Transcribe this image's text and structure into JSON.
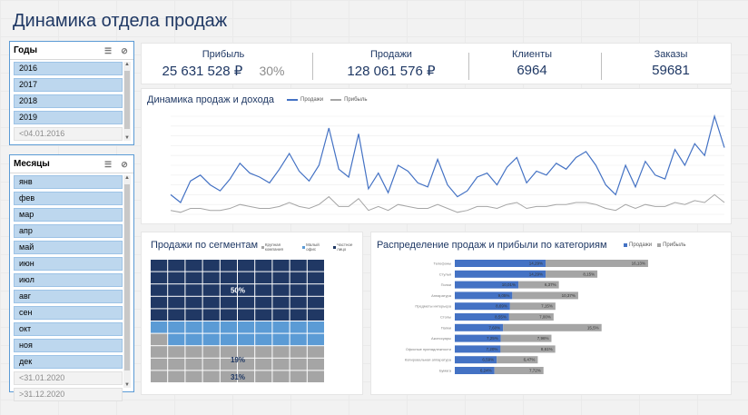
{
  "title": "Динамика отдела продаж",
  "slicer_years": {
    "title": "Годы",
    "items": [
      {
        "label": "2016",
        "active": true
      },
      {
        "label": "2017",
        "active": true
      },
      {
        "label": "2018",
        "active": true
      },
      {
        "label": "2019",
        "active": true
      },
      {
        "label": "<04.01.2016",
        "active": false
      }
    ]
  },
  "slicer_months": {
    "title": "Месяцы",
    "items": [
      {
        "label": "янв",
        "active": true
      },
      {
        "label": "фев",
        "active": true
      },
      {
        "label": "мар",
        "active": true
      },
      {
        "label": "апр",
        "active": true
      },
      {
        "label": "май",
        "active": true
      },
      {
        "label": "июн",
        "active": true
      },
      {
        "label": "июл",
        "active": true
      },
      {
        "label": "авг",
        "active": true
      },
      {
        "label": "сен",
        "active": true
      },
      {
        "label": "окт",
        "active": true
      },
      {
        "label": "ноя",
        "active": true
      },
      {
        "label": "дек",
        "active": true
      },
      {
        "label": "<31.01.2020",
        "active": false
      },
      {
        "label": ">31.12.2020",
        "active": false
      }
    ]
  },
  "kpis": {
    "profit": {
      "label": "Прибыль",
      "value": "25 631 528 ₽",
      "pct": "30%"
    },
    "sales": {
      "label": "Продажи",
      "value": "128 061 576 ₽"
    },
    "clients": {
      "label": "Клиенты",
      "value": "6964"
    },
    "orders": {
      "label": "Заказы",
      "value": "59681"
    }
  },
  "colors": {
    "blue": "#4472c4",
    "gray": "#a5a5a5",
    "navy": "#1f3864",
    "light_blue": "#5b9bd5",
    "dark_blue": "#203864"
  },
  "chart_line": {
    "title": "Динамика продаж и дохода",
    "legend": [
      "Продажи",
      "Прибыль"
    ]
  },
  "chart_waffle": {
    "title": "Продажи по сегментам",
    "legend": [
      "Крупная компания",
      "Малый офис",
      "Частное лицо"
    ],
    "labels": [
      "50%",
      "19%",
      "31%"
    ]
  },
  "chart_bars": {
    "title": "Распределение продаж и прибыли по категориям",
    "legend": [
      "Продажи",
      "Прибыль"
    ]
  },
  "chart_data": [
    {
      "type": "line",
      "title": "Динамика продаж и дохода",
      "series": [
        {
          "name": "Продажи",
          "values": [
            1.0,
            0.6,
            1.7,
            2.0,
            1.5,
            1.2,
            1.8,
            2.6,
            2.1,
            1.9,
            1.6,
            2.3,
            3.1,
            2.2,
            1.7,
            2.5,
            4.4,
            2.3,
            1.9,
            4.1,
            1.3,
            2.1,
            1.1,
            2.5,
            2.2,
            1.6,
            1.4,
            2.8,
            1.5,
            0.9,
            1.2,
            1.9,
            2.1,
            1.5,
            2.4,
            2.9,
            1.6,
            2.2,
            2.0,
            2.6,
            2.3,
            2.9,
            3.2,
            2.5,
            1.5,
            1.0,
            2.5,
            1.4,
            2.7,
            2.0,
            1.8,
            3.3,
            2.5,
            3.6,
            3.0,
            5.0,
            3.4
          ]
        },
        {
          "name": "Прибыль",
          "values": [
            0.2,
            0.1,
            0.3,
            0.3,
            0.2,
            0.2,
            0.3,
            0.5,
            0.4,
            0.3,
            0.3,
            0.4,
            0.6,
            0.4,
            0.3,
            0.5,
            0.9,
            0.4,
            0.4,
            0.8,
            0.2,
            0.4,
            0.2,
            0.5,
            0.4,
            0.3,
            0.3,
            0.5,
            0.3,
            0.1,
            0.2,
            0.4,
            0.4,
            0.3,
            0.5,
            0.6,
            0.3,
            0.4,
            0.4,
            0.5,
            0.5,
            0.6,
            0.6,
            0.5,
            0.3,
            0.2,
            0.5,
            0.3,
            0.5,
            0.4,
            0.4,
            0.6,
            0.5,
            0.7,
            0.6,
            1.0,
            0.6
          ]
        }
      ],
      "grid": true,
      "legend_position": "top"
    },
    {
      "type": "waffle",
      "title": "Продажи по сегментам",
      "categories": [
        "Крупная компания",
        "Малый офис",
        "Частное лицо"
      ],
      "values": [
        50,
        19,
        31
      ]
    },
    {
      "type": "bar",
      "orientation": "horizontal-stacked",
      "title": "Распределение продаж и прибыли по категориям",
      "categories": [
        "Телефоны",
        "Стулья",
        "Полки",
        "Аппаратура",
        "Предметы интерьера",
        "Столы",
        "Папки",
        "Аксессуары",
        "Офисные принадлежности",
        "Копировальная аппаратура",
        "Бумага"
      ],
      "series": [
        {
          "name": "Продажи",
          "values": [
            14.29,
            14.29,
            10.01,
            9.05,
            8.69,
            8.55,
            7.6,
            7.25,
            7.2,
            6.59,
            6.24
          ],
          "labels": [
            "14,29%",
            "14,29%",
            "10,01%",
            "9,05%",
            "8,69%",
            "8,55%",
            "7,60%",
            "7,25%",
            "7,20%",
            "6,59%",
            "6,24%"
          ]
        },
        {
          "name": "Прибыль",
          "values": [
            16.13,
            8.15,
            6.37,
            10.37,
            7.15,
            7.0,
            15.5,
            7.96,
            8.61,
            6.47,
            7.72
          ],
          "labels": [
            "16,13%",
            "8,15%",
            "6,37%",
            "10,37%",
            "7,15%",
            "7,00%",
            "15,5%",
            "7,96%",
            "8,61%",
            "6,47%",
            "7,72%"
          ]
        }
      ],
      "legend_position": "top-right"
    }
  ]
}
